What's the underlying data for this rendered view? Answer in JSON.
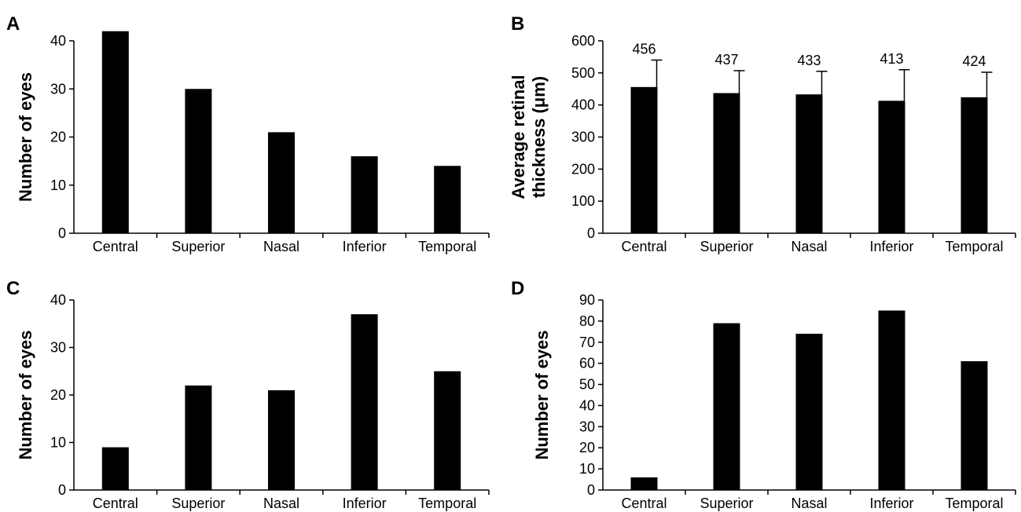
{
  "chart_data": [
    {
      "panel": "A",
      "type": "bar",
      "categories": [
        "Central",
        "Superior",
        "Nasal",
        "Inferior",
        "Temporal"
      ],
      "values": [
        42,
        30,
        21,
        16,
        14
      ],
      "ylabel": [
        "Number of eyes"
      ],
      "ylim": [
        0,
        45
      ],
      "yticks": [
        0,
        10,
        20,
        30,
        40
      ],
      "grid": false,
      "color": "#000000"
    },
    {
      "panel": "B",
      "type": "bar",
      "categories": [
        "Central",
        "Superior",
        "Nasal",
        "Inferior",
        "Temporal"
      ],
      "values": [
        456,
        437,
        433,
        413,
        424
      ],
      "errors": [
        84,
        70,
        72,
        97,
        78
      ],
      "data_labels": [
        "456",
        "437",
        "433",
        "413",
        "424"
      ],
      "ylabel": [
        "Average retinal",
        "thickness (μm)"
      ],
      "ylim": [
        0,
        600
      ],
      "yticks": [
        0,
        100,
        200,
        300,
        400,
        500,
        600
      ],
      "grid": false,
      "color": "#000000"
    },
    {
      "panel": "C",
      "type": "bar",
      "categories": [
        "Central",
        "Superior",
        "Nasal",
        "Inferior",
        "Temporal"
      ],
      "values": [
        9,
        22,
        21,
        37,
        25
      ],
      "ylabel": [
        "Number of eyes"
      ],
      "ylim": [
        0,
        40
      ],
      "yticks": [
        0,
        10,
        20,
        30,
        40
      ],
      "grid": false,
      "color": "#000000"
    },
    {
      "panel": "D",
      "type": "bar",
      "categories": [
        "Central",
        "Superior",
        "Nasal",
        "Inferior",
        "Temporal"
      ],
      "values": [
        6,
        79,
        74,
        85,
        61
      ],
      "ylabel": [
        "Number of eyes"
      ],
      "ylim": [
        0,
        90
      ],
      "yticks": [
        0,
        10,
        20,
        30,
        40,
        50,
        60,
        70,
        80,
        90
      ],
      "grid": false,
      "color": "#000000"
    }
  ]
}
